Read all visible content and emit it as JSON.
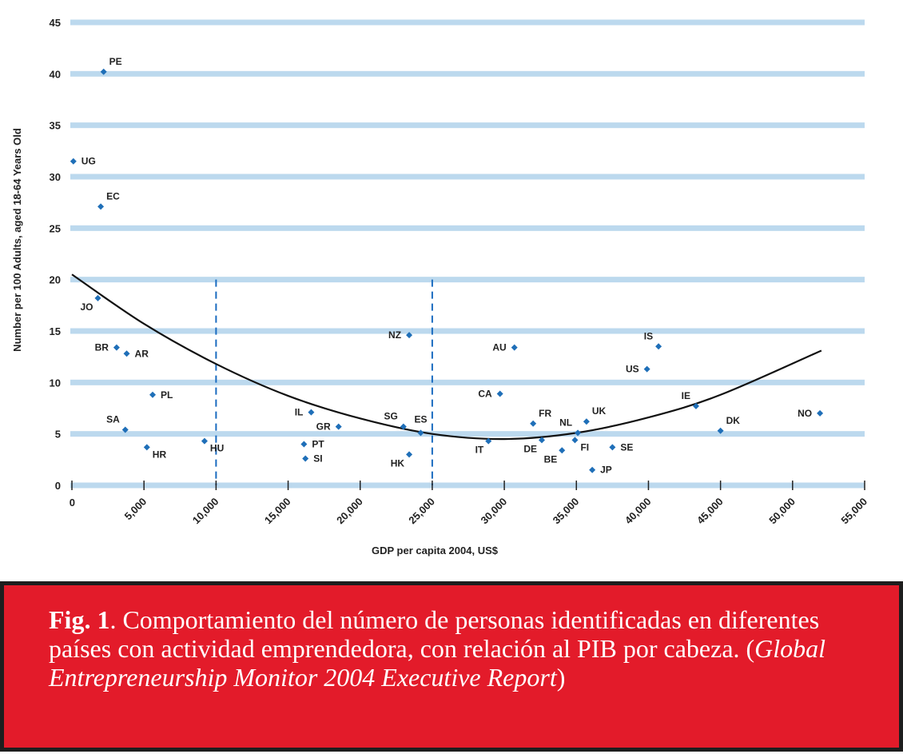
{
  "chart_data": {
    "type": "scatter",
    "xlabel": "GDP per capita 2004, US$",
    "ylabel": "Number per 100 Adults, aged 18-64 Years Old",
    "xlim": [
      0,
      55000
    ],
    "ylim": [
      0,
      45
    ],
    "x_ticks": [
      "0",
      "5,000",
      "10,000",
      "15,000",
      "20,000",
      "25,000",
      "30,000",
      "35,000",
      "40,000",
      "45,000",
      "50,000",
      "55,000"
    ],
    "y_ticks": [
      "0",
      "5",
      "10",
      "15",
      "20",
      "25",
      "30",
      "35",
      "40",
      "45"
    ],
    "grid": "horizontal",
    "colors": {
      "points": "#1f6fb8",
      "grid": "#bcd9ee",
      "trend": "#111111",
      "dashed": "#1b6cc0"
    },
    "reference_lines_x": [
      10000,
      25000
    ],
    "points": [
      {
        "label": "PE",
        "x": 2200,
        "y": 40.2,
        "label_pos": "above-right"
      },
      {
        "label": "UG",
        "x": 100,
        "y": 31.5,
        "label_pos": "right"
      },
      {
        "label": "EC",
        "x": 2000,
        "y": 27.1,
        "label_pos": "above-right"
      },
      {
        "label": "JO",
        "x": 1800,
        "y": 18.2,
        "label_pos": "below-left"
      },
      {
        "label": "BR",
        "x": 3100,
        "y": 13.4,
        "label_pos": "left"
      },
      {
        "label": "AR",
        "x": 3800,
        "y": 12.8,
        "label_pos": "right"
      },
      {
        "label": "PL",
        "x": 5600,
        "y": 8.8,
        "label_pos": "right"
      },
      {
        "label": "SA",
        "x": 3700,
        "y": 5.4,
        "label_pos": "above-left"
      },
      {
        "label": "HR",
        "x": 5200,
        "y": 3.7,
        "label_pos": "below-right"
      },
      {
        "label": "HU",
        "x": 9200,
        "y": 4.3,
        "label_pos": "below-right"
      },
      {
        "label": "IL",
        "x": 16600,
        "y": 7.1,
        "label_pos": "left"
      },
      {
        "label": "GR",
        "x": 18500,
        "y": 5.7,
        "label_pos": "left"
      },
      {
        "label": "PT",
        "x": 16100,
        "y": 4.0,
        "label_pos": "right"
      },
      {
        "label": "SI",
        "x": 16200,
        "y": 2.6,
        "label_pos": "right"
      },
      {
        "label": "SG",
        "x": 23000,
        "y": 5.7,
        "label_pos": "above-left"
      },
      {
        "label": "ES",
        "x": 24200,
        "y": 5.1,
        "label_pos": "above"
      },
      {
        "label": "NZ",
        "x": 23400,
        "y": 14.6,
        "label_pos": "left"
      },
      {
        "label": "HK",
        "x": 23400,
        "y": 3.0,
        "label_pos": "below-left"
      },
      {
        "label": "AU",
        "x": 30700,
        "y": 13.4,
        "label_pos": "left"
      },
      {
        "label": "CA",
        "x": 29700,
        "y": 8.9,
        "label_pos": "left"
      },
      {
        "label": "IT",
        "x": 28900,
        "y": 4.3,
        "label_pos": "below-left"
      },
      {
        "label": "FR",
        "x": 32000,
        "y": 6.0,
        "label_pos": "above-right"
      },
      {
        "label": "DE",
        "x": 32600,
        "y": 4.4,
        "label_pos": "below-left"
      },
      {
        "label": "BE",
        "x": 34000,
        "y": 3.4,
        "label_pos": "below-left"
      },
      {
        "label": "NL",
        "x": 35100,
        "y": 5.1,
        "label_pos": "above-left"
      },
      {
        "label": "FI",
        "x": 34900,
        "y": 4.4,
        "label_pos": "below-right"
      },
      {
        "label": "UK",
        "x": 35700,
        "y": 6.2,
        "label_pos": "above-right"
      },
      {
        "label": "SE",
        "x": 37500,
        "y": 3.7,
        "label_pos": "right"
      },
      {
        "label": "JP",
        "x": 36100,
        "y": 1.5,
        "label_pos": "right"
      },
      {
        "label": "US",
        "x": 39900,
        "y": 11.3,
        "label_pos": "left"
      },
      {
        "label": "IS",
        "x": 40700,
        "y": 13.5,
        "label_pos": "above-left"
      },
      {
        "label": "IE",
        "x": 43300,
        "y": 7.7,
        "label_pos": "above-left"
      },
      {
        "label": "DK",
        "x": 45000,
        "y": 5.3,
        "label_pos": "above-right"
      },
      {
        "label": "NO",
        "x": 51900,
        "y": 7.0,
        "label_pos": "left"
      }
    ],
    "trendline": {
      "type": "quadratic",
      "points": [
        [
          0,
          20.5
        ],
        [
          5000,
          15.7
        ],
        [
          10000,
          11.8
        ],
        [
          15000,
          8.7
        ],
        [
          20000,
          6.5
        ],
        [
          25000,
          5.0
        ],
        [
          30000,
          4.5
        ],
        [
          35000,
          5.1
        ],
        [
          40000,
          6.6
        ],
        [
          45000,
          8.8
        ],
        [
          52000,
          13.1
        ]
      ]
    }
  },
  "caption": {
    "fig": "Fig. 1",
    "text": ". Comportamiento del número de personas identificadas en diferentes países con actividad emprendedora, con relación al PIB por cabeza. (",
    "source": "Global Entrepreneurship Monitor 2004 Executive Report",
    "close": ")"
  }
}
